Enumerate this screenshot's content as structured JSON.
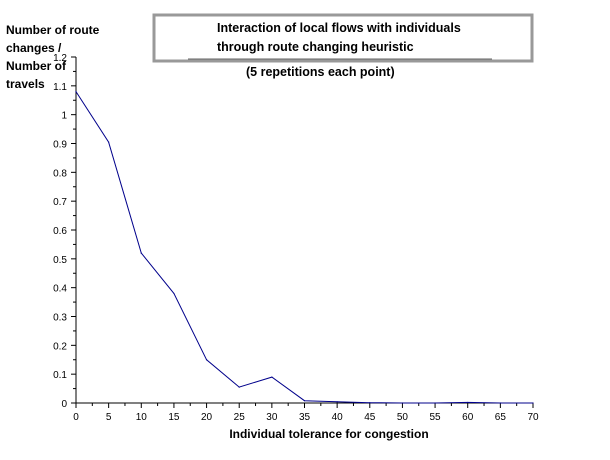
{
  "chart_data": {
    "type": "line",
    "title_lines": [
      "Interaction of local flows with individuals",
      "through route changing heuristic"
    ],
    "subtitle": "(5 repetitions each point)",
    "xlabel": "Individual tolerance for congestion",
    "ylabel_lines": [
      "Number of route",
      "changes /",
      "Number of",
      "travels"
    ],
    "xlim": [
      0,
      70
    ],
    "ylim": [
      0,
      1.2
    ],
    "x_ticks": [
      "0",
      "5",
      "10",
      "15",
      "20",
      "25",
      "30",
      "35",
      "40",
      "45",
      "50",
      "55",
      "60",
      "65",
      "70"
    ],
    "y_ticks": [
      "0",
      "0.1",
      "0.2",
      "0.3",
      "0.4",
      "0.5",
      "0.6",
      "0.7",
      "0.8",
      "0.9",
      "1",
      "1.1",
      "1.2"
    ],
    "series": [
      {
        "color": "#00008b",
        "x": [
          0,
          5,
          10,
          15,
          20,
          25,
          30,
          35,
          40,
          45,
          50,
          55,
          60,
          65,
          70
        ],
        "y": [
          1.08,
          0.905,
          0.52,
          0.38,
          0.15,
          0.055,
          0.09,
          0.008,
          0.004,
          0.001,
          0,
          0,
          0.002,
          0,
          0
        ]
      }
    ],
    "grid": false,
    "legend": "none"
  }
}
